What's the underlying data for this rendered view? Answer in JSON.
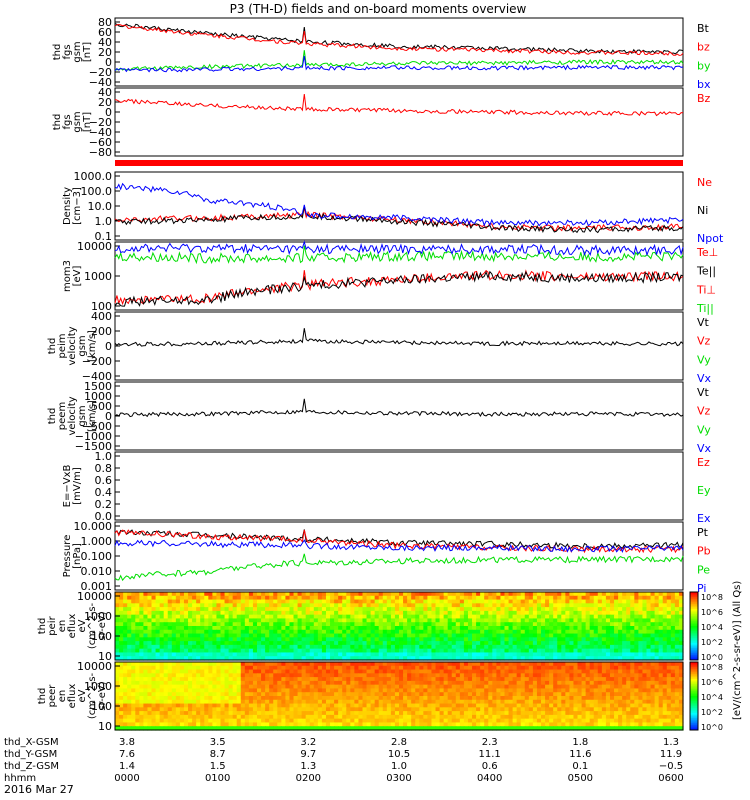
{
  "title": "P3 (TH-D) fields and on-board moments overview",
  "date": "2016 Mar 27",
  "colors": {
    "black": "#000000",
    "red": "#ff0000",
    "green": "#00dd00",
    "blue": "#0000ff"
  },
  "panels": [
    {
      "id": "fgs-gsm",
      "ylabel": [
        "thd",
        "fgs",
        "gsm",
        "[nT]"
      ],
      "ticks": [
        "80",
        "60",
        "40",
        "20",
        "0",
        "−20",
        "−40"
      ],
      "legend": [
        {
          "t": "Bt",
          "c": "black"
        },
        {
          "t": "bz",
          "c": "red"
        },
        {
          "t": "by",
          "c": "green"
        },
        {
          "t": "bx",
          "c": "blue"
        }
      ]
    },
    {
      "id": "fgs-gse",
      "ylabel": [
        "thd",
        "fgs",
        "gsm",
        "[nT]"
      ],
      "ticks": [
        "40",
        "20",
        "0",
        "−20",
        "−40",
        "−60",
        "−80"
      ],
      "legend": [
        {
          "t": "Bz",
          "c": "red"
        }
      ]
    },
    {
      "id": "density",
      "ylabel": [
        "Density",
        "[cm−3]"
      ],
      "ticks": [
        "1000.0",
        "100.0",
        "10.0",
        "1.0",
        "0.1"
      ],
      "legend": [
        {
          "t": "Ne",
          "c": "red"
        },
        {
          "t": "Ni",
          "c": "black"
        },
        {
          "t": "Npot",
          "c": "blue"
        }
      ]
    },
    {
      "id": "temperature",
      "ylabel": [
        "mom3",
        "[eV]"
      ],
      "ticks": [
        "10000",
        "1000",
        "100"
      ],
      "legend": [
        {
          "t": "Te⊥",
          "c": "red"
        },
        {
          "t": "Te||",
          "c": "black"
        },
        {
          "t": "Ti⊥",
          "c": "red"
        },
        {
          "t": "Ti||",
          "c": "green"
        }
      ]
    },
    {
      "id": "ion-velocity",
      "ylabel": [
        "thd",
        "peim",
        "velocity",
        "gsm",
        "[km/s]"
      ],
      "ticks": [
        "400",
        "200",
        "0",
        "−200",
        "−400"
      ],
      "legend": [
        {
          "t": "Vt",
          "c": "black"
        },
        {
          "t": "Vz",
          "c": "red"
        },
        {
          "t": "Vy",
          "c": "green"
        },
        {
          "t": "Vx",
          "c": "blue"
        }
      ]
    },
    {
      "id": "electron-velocity",
      "ylabel": [
        "thd",
        "peem",
        "velocity",
        "gsm",
        "[km/s]"
      ],
      "ticks": [
        "1500",
        "1000",
        "500",
        "0",
        "−500",
        "−1000",
        "−1500"
      ],
      "legend": [
        {
          "t": "Vt",
          "c": "black"
        },
        {
          "t": "Vz",
          "c": "red"
        },
        {
          "t": "Vy",
          "c": "green"
        },
        {
          "t": "Vx",
          "c": "blue"
        }
      ]
    },
    {
      "id": "efield",
      "ylabel": [
        "E=−VxB",
        "[mV/m]"
      ],
      "ticks": [
        "1.0",
        "0.8",
        "0.6",
        "0.4",
        "0.2",
        "0.0"
      ],
      "legend": [
        {
          "t": "Ez",
          "c": "red"
        },
        {
          "t": "Ey",
          "c": "green"
        },
        {
          "t": "Ex",
          "c": "blue"
        }
      ]
    },
    {
      "id": "pressure",
      "ylabel": [
        "Pressure",
        "[nPa]"
      ],
      "ticks": [
        "10.000",
        "1.000",
        "0.100",
        "0.010",
        "0.001"
      ],
      "legend": [
        {
          "t": "Pt",
          "c": "black"
        },
        {
          "t": "Pb",
          "c": "red"
        },
        {
          "t": "Pe",
          "c": "green"
        },
        {
          "t": "Pi",
          "c": "blue"
        }
      ]
    },
    {
      "id": "ion-spectrogram",
      "ylabel": [
        "thd",
        "peir",
        "en",
        "eflux",
        "eV",
        "(cm^2-s-",
        "sr-eV)"
      ],
      "ticks": [
        "10000",
        "1000",
        "100",
        "10"
      ]
    },
    {
      "id": "electron-spectrogram",
      "ylabel": [
        "thd",
        "peer",
        "en",
        "eflux",
        "eV",
        "(cm^2-s-",
        "sr-eV)"
      ],
      "ticks": [
        "10000",
        "1000",
        "100",
        "10"
      ]
    }
  ],
  "colorbar": {
    "ticks": [
      "10^8",
      "10^6",
      "10^4",
      "10^2",
      "10^0"
    ],
    "label": "[eV/(cm^2-s-sr-eV)] (All Qs)"
  },
  "footer": {
    "rows": [
      {
        "label": "thd_X-GSM",
        "values": [
          "3.8",
          "3.5",
          "3.2",
          "2.8",
          "2.3",
          "1.8",
          "1.3"
        ]
      },
      {
        "label": "thd_Y-GSM",
        "values": [
          "7.6",
          "8.7",
          "9.7",
          "10.5",
          "11.1",
          "11.6",
          "11.9"
        ]
      },
      {
        "label": "thd_Z-GSM",
        "values": [
          "1.4",
          "1.5",
          "1.3",
          "1.0",
          "0.6",
          "0.1",
          "−0.5"
        ]
      },
      {
        "label": "hhmm",
        "values": [
          "0000",
          "0100",
          "0200",
          "0300",
          "0400",
          "0500",
          "0600"
        ]
      }
    ]
  },
  "chart_data": {
    "type": "line",
    "title": "P3 (TH-D) fields and on-board moments overview",
    "x_unit": "UT (hhmm)",
    "x_range": [
      "0000",
      "0600"
    ],
    "panels": [
      {
        "name": "fgs gsm [nT]",
        "series": [
          {
            "name": "Bt",
            "color": "black",
            "t": [
              0,
              1,
              2,
              3,
              4,
              5,
              6
            ],
            "v": [
              78,
              60,
              45,
              36,
              32,
              27,
              25
            ]
          },
          {
            "name": "bz",
            "color": "red",
            "t": [
              0,
              1,
              2,
              3,
              4,
              5,
              6
            ],
            "v": [
              76,
              57,
              41,
              32,
              28,
              24,
              22
            ]
          },
          {
            "name": "by",
            "color": "green",
            "t": [
              0,
              1,
              2,
              3,
              4,
              5,
              6
            ],
            "v": [
              -8,
              -3,
              0,
              3,
              4,
              6,
              5
            ]
          },
          {
            "name": "bx",
            "color": "blue",
            "t": [
              0,
              1,
              2,
              3,
              4,
              5,
              6
            ],
            "v": [
              -10,
              -8,
              -6,
              -5,
              -6,
              -4,
              -5
            ]
          }
        ],
        "ylim": [
          -40,
          90
        ]
      },
      {
        "name": "fgs gsm [nT]",
        "series": [
          {
            "name": "Bz",
            "color": "red",
            "t": [
              0,
              1,
              2,
              3,
              4,
              5,
              6
            ],
            "v": [
              20,
              10,
              3,
              0,
              -3,
              -5,
              -6
            ]
          }
        ],
        "ylim": [
          -90,
          45
        ]
      },
      {
        "name": "Density [cm-3]",
        "scale": "log",
        "series": [
          {
            "name": "Ne",
            "color": "red",
            "t": [
              0,
              1,
              2,
              3,
              4,
              5,
              6
            ],
            "v": [
              1.5,
              2,
              3,
              1.5,
              0.6,
              0.5,
              0.6
            ]
          },
          {
            "name": "Ni",
            "color": "black",
            "t": [
              0,
              1,
              2,
              3,
              4,
              5,
              6
            ],
            "v": [
              1.2,
              1.5,
              2.5,
              1.2,
              0.5,
              0.4,
              0.5
            ]
          },
          {
            "name": "Npot",
            "color": "blue",
            "t": [
              0,
              1,
              2,
              3,
              4,
              5,
              6
            ],
            "v": [
              150,
              20,
              3,
              2,
              1,
              1,
              1.5
            ]
          }
        ],
        "ylim": [
          0.1,
          1000
        ]
      },
      {
        "name": "mom3 [eV]",
        "scale": "log",
        "series": [
          {
            "name": "Te⊥",
            "color": "red",
            "t": [
              0,
              1,
              2,
              3,
              4,
              5,
              6
            ],
            "v": [
              70,
              80,
              250,
              400,
              600,
              500,
              550
            ]
          },
          {
            "name": "Te||",
            "color": "black",
            "t": [
              0,
              1,
              2,
              3,
              4,
              5,
              6
            ],
            "v": [
              60,
              70,
              230,
              380,
              550,
              450,
              500
            ]
          },
          {
            "name": "Ti||",
            "color": "green",
            "t": [
              0,
              1,
              2,
              3,
              4,
              5,
              6
            ],
            "v": [
              3000,
              2500,
              2500,
              3000,
              3000,
              2800,
              2900
            ]
          },
          {
            "name": "Npot",
            "color": "blue",
            "t": [
              0,
              1,
              2,
              3,
              4,
              5,
              6
            ],
            "v": [
              6000,
              6000,
              5500,
              5500,
              5500,
              5000,
              5000
            ]
          }
        ],
        "ylim": [
          30,
          10000
        ]
      },
      {
        "name": "peim velocity gsm [km/s]",
        "series": [
          {
            "name": "Vt",
            "color": "black",
            "t": [
              0,
              1,
              2,
              3,
              4,
              5,
              6
            ],
            "v": [
              20,
              30,
              60,
              40,
              30,
              30,
              25
            ]
          }
        ],
        "ylim": [
          -400,
          400
        ]
      },
      {
        "name": "peem velocity gsm [km/s]",
        "series": [
          {
            "name": "Vt",
            "color": "black",
            "t": [
              0,
              1,
              2,
              3,
              4,
              5,
              6
            ],
            "v": [
              50,
              100,
              200,
              120,
              80,
              90,
              70
            ]
          }
        ],
        "ylim": [
          -1500,
          1500
        ]
      },
      {
        "name": "E=-VxB [mV/m]",
        "series": [],
        "ylim": [
          0,
          1
        ]
      },
      {
        "name": "Pressure [nPa]",
        "scale": "log",
        "series": [
          {
            "name": "Pt",
            "color": "black",
            "t": [
              0,
              1,
              2,
              3,
              4,
              5,
              6
            ],
            "v": [
              2.5,
              1.6,
              1.0,
              0.6,
              0.5,
              0.4,
              0.45
            ]
          },
          {
            "name": "Pb",
            "color": "red",
            "t": [
              0,
              1,
              2,
              3,
              4,
              5,
              6
            ],
            "v": [
              2.4,
              1.4,
              0.8,
              0.4,
              0.3,
              0.25,
              0.25
            ]
          },
          {
            "name": "Pe",
            "color": "green",
            "t": [
              0,
              1,
              2,
              3,
              4,
              5,
              6
            ],
            "v": [
              0.005,
              0.012,
              0.04,
              0.05,
              0.06,
              0.06,
              0.07
            ]
          },
          {
            "name": "Pi",
            "color": "blue",
            "t": [
              0,
              1,
              2,
              3,
              4,
              5,
              6
            ],
            "v": [
              0.6,
              0.5,
              0.4,
              0.3,
              0.3,
              0.25,
              0.3
            ]
          }
        ],
        "ylim": [
          0.001,
          10
        ]
      }
    ]
  }
}
